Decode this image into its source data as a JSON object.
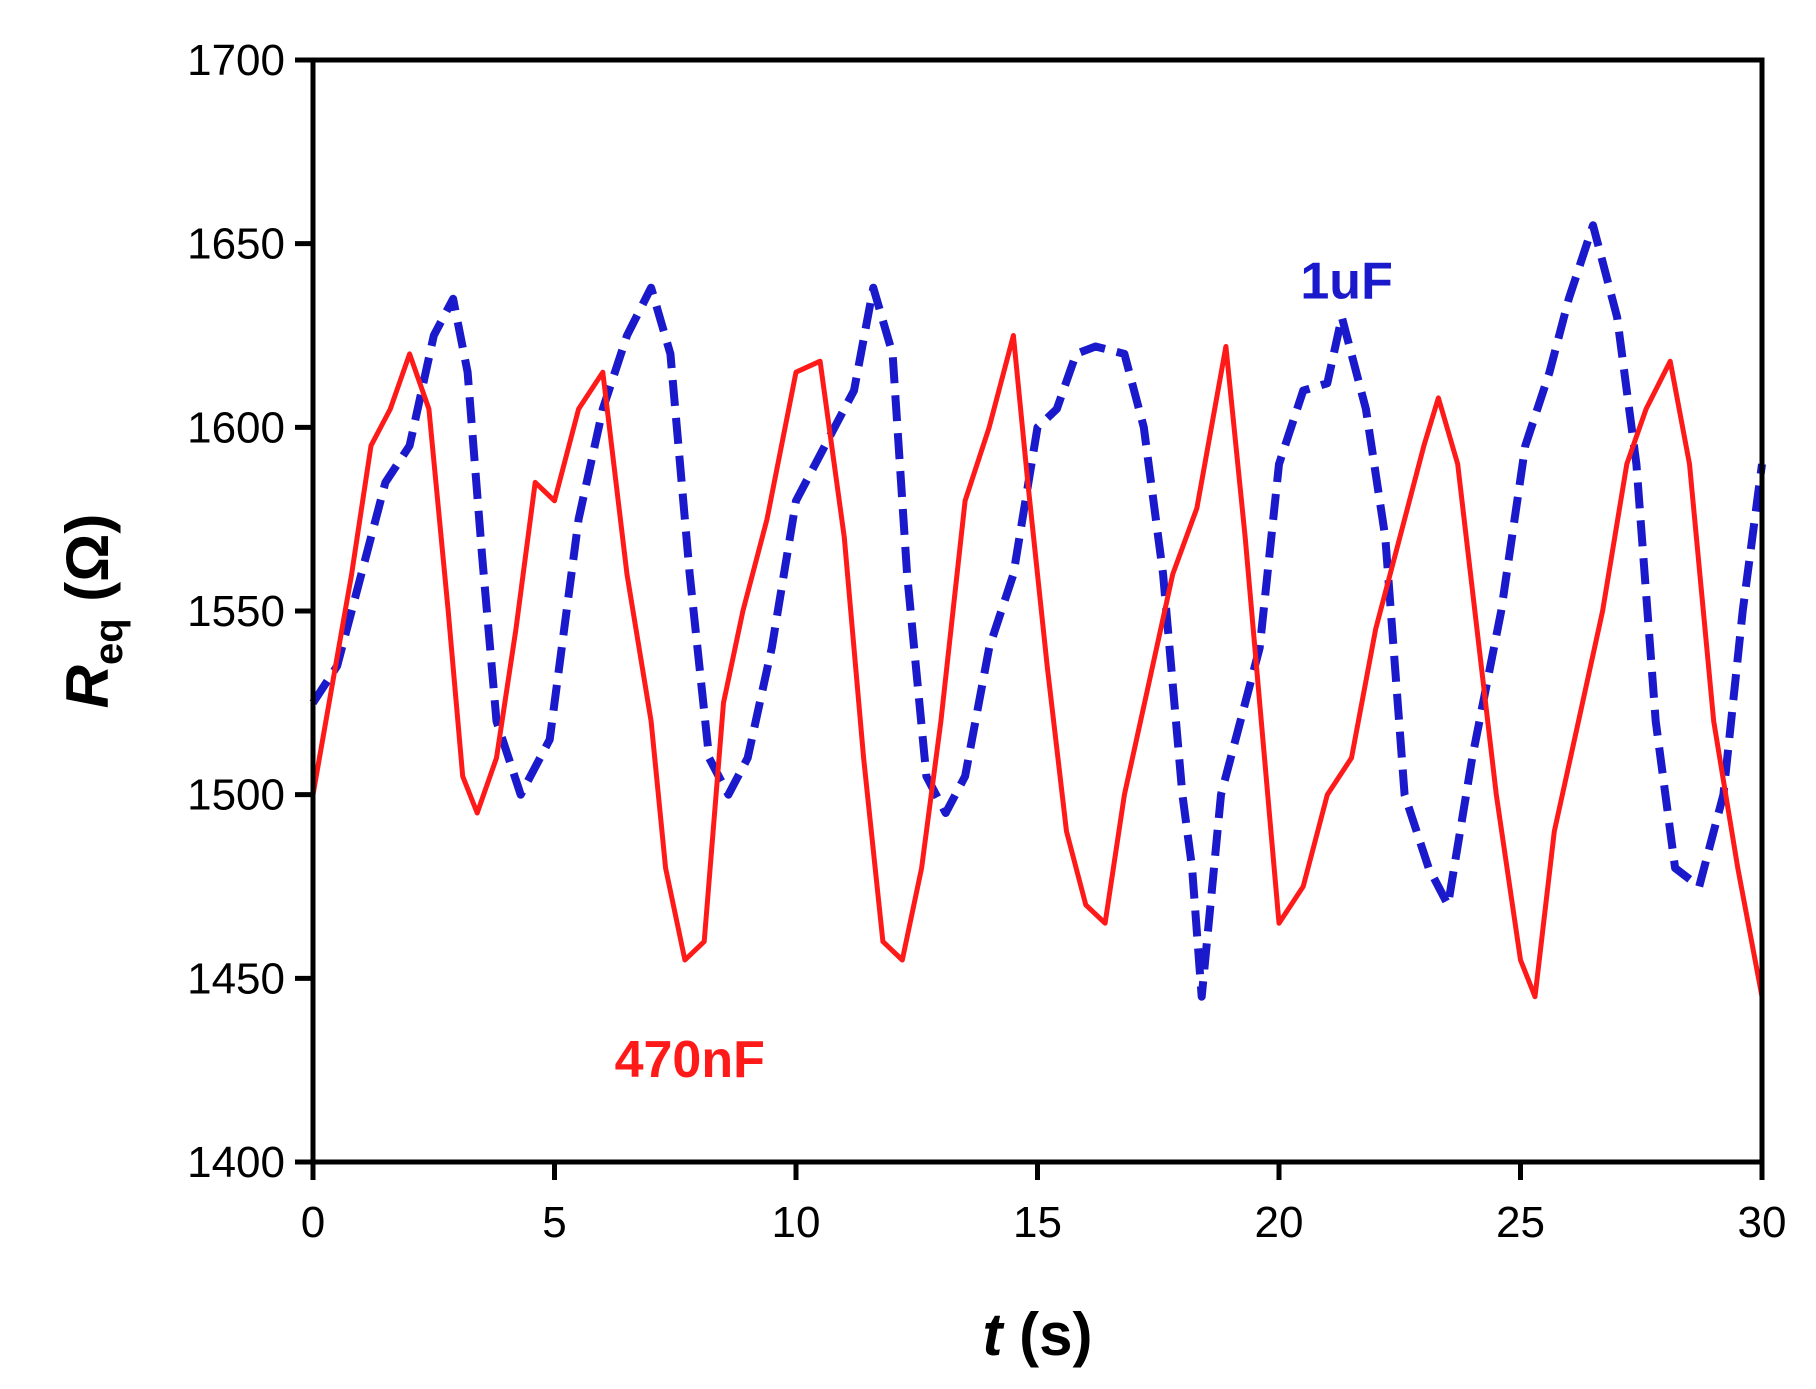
{
  "chart_data": {
    "type": "line",
    "title": "",
    "xlabel": {
      "italic": "t",
      "rest": " (s)"
    },
    "ylabel": {
      "italic": "R",
      "sub": "eq",
      "rest": " (Ω)"
    },
    "xlim": [
      0,
      30
    ],
    "ylim": [
      1400,
      1700
    ],
    "xticks": [
      0,
      5,
      10,
      15,
      20,
      25,
      30
    ],
    "yticks": [
      1400,
      1450,
      1500,
      1550,
      1600,
      1650,
      1700
    ],
    "grid": false,
    "series": [
      {
        "name": "1uF",
        "label": "1uF",
        "color": "#1a1acc",
        "style": "dashed",
        "label_at": {
          "x": 21.4,
          "y": 1640
        },
        "x": [
          0,
          0.5,
          1,
          1.5,
          2,
          2.5,
          2.9,
          3.2,
          3.5,
          3.8,
          4.3,
          4.9,
          5.5,
          6,
          6.5,
          7,
          7.4,
          7.8,
          8.2,
          8.6,
          9,
          9.5,
          10,
          10.4,
          10.8,
          11.2,
          11.6,
          12,
          12.3,
          12.7,
          13.1,
          13.5,
          14,
          14.5,
          15,
          15.4,
          15.8,
          16.2,
          16.8,
          17.2,
          17.6,
          18,
          18.2,
          18.4,
          18.8,
          19.2,
          19.6,
          20,
          20.5,
          21,
          21.3,
          21.8,
          22.2,
          22.6,
          23.1,
          23.5,
          24,
          24.6,
          25.1,
          25.6,
          26,
          26.5,
          27,
          27.4,
          27.8,
          28.2,
          28.7,
          29.2,
          29.6,
          30
        ],
        "y": [
          1525,
          1535,
          1560,
          1585,
          1595,
          1625,
          1635,
          1615,
          1565,
          1520,
          1500,
          1515,
          1575,
          1605,
          1625,
          1638,
          1620,
          1560,
          1510,
          1500,
          1510,
          1540,
          1580,
          1590,
          1600,
          1610,
          1638,
          1620,
          1560,
          1505,
          1495,
          1505,
          1540,
          1560,
          1600,
          1605,
          1620,
          1622,
          1620,
          1600,
          1560,
          1500,
          1480,
          1445,
          1500,
          1520,
          1540,
          1590,
          1610,
          1612,
          1630,
          1605,
          1570,
          1500,
          1480,
          1470,
          1510,
          1550,
          1595,
          1615,
          1635,
          1655,
          1630,
          1590,
          1520,
          1480,
          1475,
          1500,
          1550,
          1590
        ]
      },
      {
        "name": "470nF",
        "label": "470nF",
        "color": "#ff1a1a",
        "style": "solid",
        "label_at": {
          "x": 7.8,
          "y": 1428
        },
        "x": [
          0,
          0.4,
          0.8,
          1.2,
          1.6,
          2,
          2.4,
          2.8,
          3.1,
          3.4,
          3.8,
          4.2,
          4.6,
          5,
          5.5,
          6,
          6.5,
          7,
          7.3,
          7.7,
          8.1,
          8.5,
          8.9,
          9.4,
          10,
          10.5,
          11,
          11.4,
          11.8,
          12.2,
          12.6,
          13,
          13.5,
          14,
          14.5,
          14.8,
          15.2,
          15.6,
          16,
          16.4,
          16.8,
          17.3,
          17.8,
          18.3,
          18.9,
          19.3,
          19.7,
          20,
          20.5,
          21,
          21.5,
          22,
          22.5,
          23,
          23.3,
          23.7,
          24.1,
          24.5,
          25,
          25.3,
          25.7,
          26.2,
          26.7,
          27.2,
          27.6,
          28.1,
          28.5,
          29,
          29.5,
          30
        ],
        "y": [
          1500,
          1530,
          1560,
          1595,
          1605,
          1620,
          1605,
          1550,
          1505,
          1495,
          1510,
          1545,
          1585,
          1580,
          1605,
          1615,
          1560,
          1520,
          1480,
          1455,
          1460,
          1525,
          1550,
          1575,
          1615,
          1618,
          1570,
          1510,
          1460,
          1455,
          1480,
          1520,
          1580,
          1600,
          1625,
          1585,
          1535,
          1490,
          1470,
          1465,
          1500,
          1530,
          1560,
          1578,
          1622,
          1570,
          1510,
          1465,
          1475,
          1500,
          1510,
          1545,
          1570,
          1595,
          1608,
          1590,
          1545,
          1500,
          1455,
          1445,
          1490,
          1520,
          1550,
          1590,
          1605,
          1618,
          1590,
          1520,
          1480,
          1445
        ]
      }
    ]
  }
}
